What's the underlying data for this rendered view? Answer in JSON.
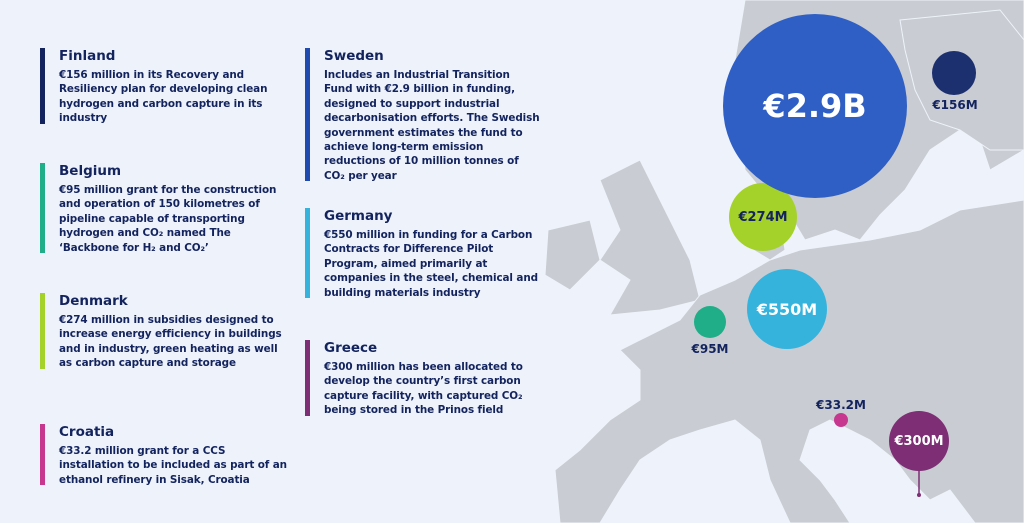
{
  "countries": [
    {
      "name": "Finland",
      "text": "€156 million in its Recovery and Resiliency plan for developing clean hydrogen and carbon capture in its industry",
      "amount": "€156M",
      "color": "#1c2f6e",
      "bar": "#13235e"
    },
    {
      "name": "Belgium",
      "text": "€95 million grant for the construction and operation of 150 kilometres of pipeline capable of transporting hydrogen and CO₂ named The ‘Backbone for H₂ and CO₂’",
      "amount": "€95M",
      "color": "#1fae88",
      "bar": "#1fae88"
    },
    {
      "name": "Denmark",
      "text": "€274 million in subsidies designed to increase energy efficiency in buildings and in industry, green heating as well as carbon capture and storage",
      "amount": "€274M",
      "color": "#a5d12b",
      "bar": "#a5d12b"
    },
    {
      "name": "Croatia",
      "text": "€33.2 million grant for a CCS installation to be included as part of an ethanol refinery in Sisak, Croatia",
      "amount": "€33.2M",
      "color": "#c8378f",
      "bar": "#c8378f"
    },
    {
      "name": "Sweden",
      "text": "Includes an Industrial Transition Fund with €2.9 billion in funding, designed to support industrial decarbonisation efforts. The Swedish government estimates the fund to achieve long-term emission reductions of 10 million tonnes of CO₂ per year",
      "amount": "€2.9B",
      "color": "#2f5fc4",
      "bar": "#1f4bb0"
    },
    {
      "name": "Germany",
      "text": "€550 million in funding for a Carbon Contracts for Difference Pilot Program, aimed primarily at companies in the steel, chemical and building materials industry",
      "amount": "€550M",
      "color": "#35b3dd",
      "bar": "#35b3dd"
    },
    {
      "name": "Greece",
      "text": "€300 million has been allocated to develop the country’s first carbon capture facility, with captured CO₂ being stored in the Prinos field",
      "amount": "€300M",
      "color": "#7d2e74",
      "bar": "#7d2e74"
    }
  ]
}
